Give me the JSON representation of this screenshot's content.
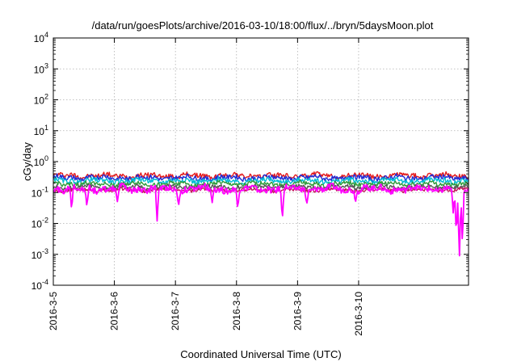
{
  "chart_data": {
    "type": "line",
    "title": "/data/run/goesPlots/archive/2016-03-10/18:00/flux/../bryn/5daysMoon.plot",
    "xlabel": "Coordinated Universal Time (UTC)",
    "ylabel": "cGy/day",
    "y_scale": "log",
    "ylim": [
      0.0001,
      10000
    ],
    "x_tick_labels": [
      "2016-3-5",
      "2016-3-6",
      "2016-3-7",
      "2016-3-8",
      "2016-3-9",
      "2016-3-10"
    ],
    "xlim_days": [
      0,
      6.8
    ],
    "grid": true,
    "legend": "none",
    "y_ticks": [
      {
        "base": "10",
        "exp": "-4"
      },
      {
        "base": "10",
        "exp": "-3"
      },
      {
        "base": "10",
        "exp": "-2"
      },
      {
        "base": "10",
        "exp": "-1"
      },
      {
        "base": "10",
        "exp": "0"
      },
      {
        "base": "10",
        "exp": "1"
      },
      {
        "base": "10",
        "exp": "2"
      },
      {
        "base": "10",
        "exp": "3"
      },
      {
        "base": "10",
        "exp": "4"
      }
    ],
    "series": [
      {
        "color": "#e41a1c",
        "base": 0.35,
        "amp": 0.22,
        "dips": []
      },
      {
        "color": "#1f2bd6",
        "base": 0.3,
        "amp": 0.22,
        "dips": []
      },
      {
        "color": "#00bcd4",
        "base": 0.24,
        "amp": 0.22,
        "dips": []
      },
      {
        "color": "#2e9b3a",
        "base": 0.19,
        "amp": 0.2,
        "dips": []
      },
      {
        "color": "#555555",
        "base": 0.15,
        "amp": 0.18,
        "dips": []
      },
      {
        "color": "#c2185b",
        "base": 0.12,
        "amp": 0.16,
        "dips": []
      },
      {
        "color": "#ff00ff",
        "base": 0.13,
        "amp": 0.3,
        "dips": [
          {
            "day": 0.3,
            "value": 0.028
          },
          {
            "day": 0.55,
            "value": 0.035
          },
          {
            "day": 1.05,
            "value": 0.05
          },
          {
            "day": 1.7,
            "value": 0.012
          },
          {
            "day": 2.05,
            "value": 0.035
          },
          {
            "day": 2.6,
            "value": 0.045
          },
          {
            "day": 3.02,
            "value": 0.028
          },
          {
            "day": 3.75,
            "value": 0.012
          },
          {
            "day": 4.15,
            "value": 0.04
          },
          {
            "day": 4.95,
            "value": 0.05
          },
          {
            "day": 6.55,
            "value": 0.02
          },
          {
            "day": 6.6,
            "value": 0.004
          },
          {
            "day": 6.65,
            "value": 0.0006
          },
          {
            "day": 6.7,
            "value": 0.002
          },
          {
            "day": 6.74,
            "value": 0.12
          }
        ]
      }
    ]
  }
}
